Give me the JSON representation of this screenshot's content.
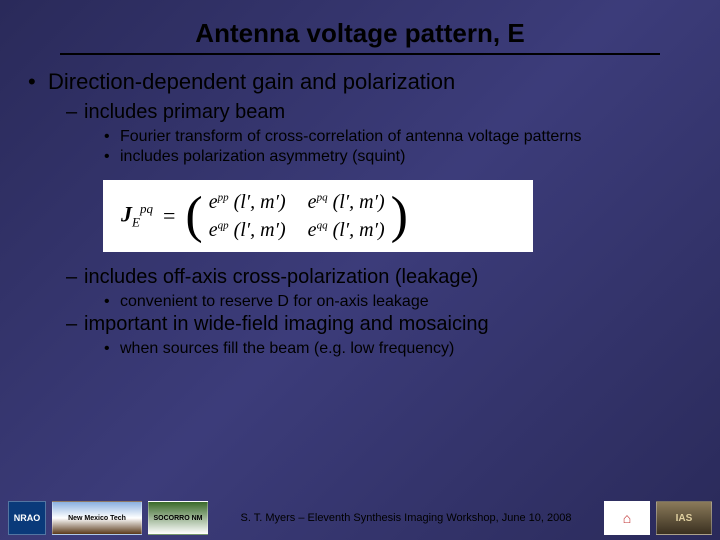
{
  "title": "Antenna voltage pattern, E",
  "bullets": {
    "l1": "Direction-dependent gain and polarization",
    "l2a": "includes primary beam",
    "l3a": "Fourier transform of cross-correlation of antenna voltage patterns",
    "l3b": "includes polarization asymmetry (squint)",
    "l2b": "includes off-axis cross-polarization (leakage)",
    "l3c": "convenient to reserve D for on-axis leakage",
    "l2c": "important in wide-field imaging and mosaicing",
    "l3d": "when sources fill the beam (e.g. low frequency)"
  },
  "equation": {
    "lhs_base": "J",
    "lhs_sup": "pq",
    "lhs_sub": "E",
    "cells": {
      "c11_sup": "pp",
      "c12_sup": "pq",
      "c21_sup": "qp",
      "c22_sup": "qq",
      "args": "(l′, m′)"
    }
  },
  "footer": {
    "text": "S. T. Myers – Eleventh Synthesis Imaging Workshop, June 10, 2008",
    "logo1": "NRAO",
    "logo2": "New Mexico Tech",
    "logo3": "SOCORRO NM",
    "logo4": "⌂",
    "logo5": "IAS"
  }
}
